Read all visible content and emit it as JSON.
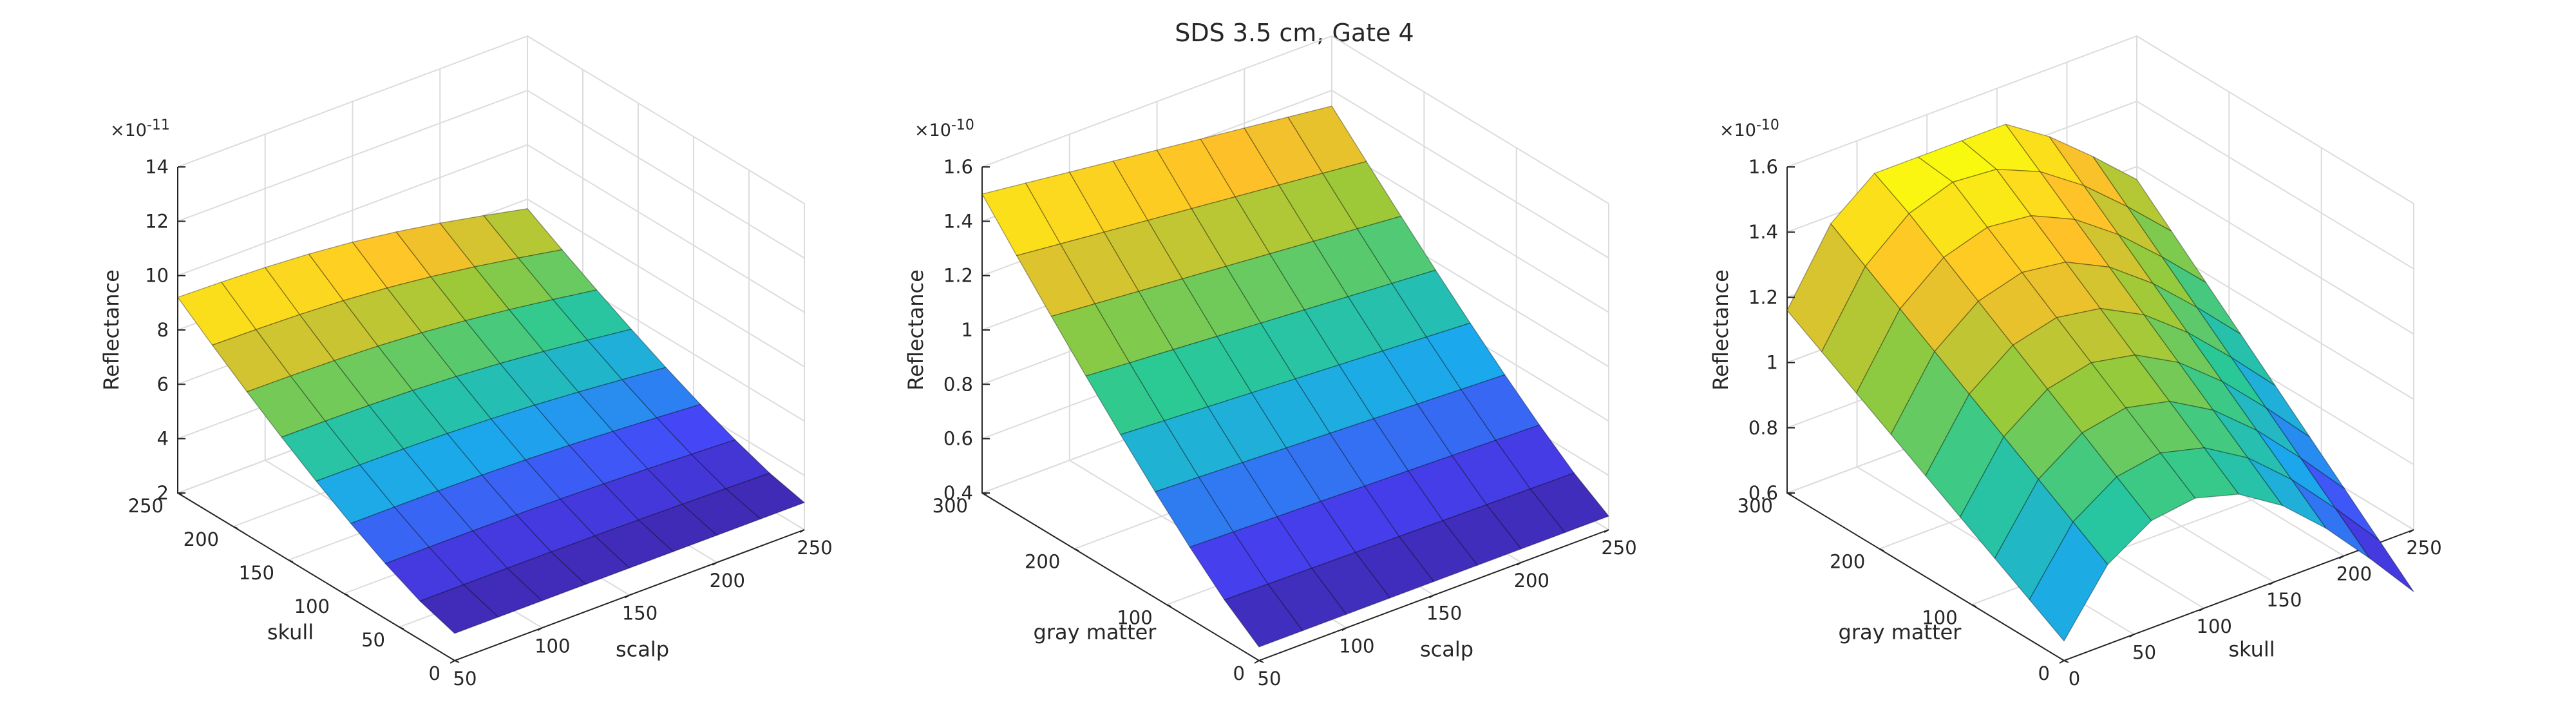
{
  "figure": {
    "title": "SDS 3.5 cm, Gate 4",
    "colormap": [
      "#3e26a8",
      "#4743f8",
      "#1ca8ec",
      "#2ac995",
      "#97ca3a",
      "#fec029",
      "#f9fb0e"
    ]
  },
  "chart_data": [
    {
      "type": "surface",
      "zlabel": "Reflectance",
      "xlabel": "scalp",
      "ylabel": "skull",
      "exponent": "-11",
      "xlim": [
        50,
        250
      ],
      "ylim": [
        0,
        250
      ],
      "zlim": [
        2,
        14
      ],
      "xticks": [
        50,
        100,
        150,
        200,
        250
      ],
      "yticks": [
        0,
        50,
        100,
        150,
        200,
        250
      ],
      "zticks": [
        2,
        4,
        6,
        8,
        10,
        12,
        14
      ],
      "x": [
        50,
        75,
        100,
        125,
        150,
        175,
        200,
        225,
        250
      ],
      "y": [
        0,
        31.25,
        62.5,
        93.75,
        125,
        156.25,
        187.5,
        218.75,
        250
      ],
      "z_model": "skull_dependent"
    },
    {
      "type": "surface",
      "zlabel": "Reflectance",
      "xlabel": "scalp",
      "ylabel": "gray matter",
      "exponent": "-10",
      "xlim": [
        50,
        250
      ],
      "ylim": [
        0,
        300
      ],
      "zlim": [
        0.4,
        1.6
      ],
      "xticks": [
        50,
        100,
        150,
        200,
        250
      ],
      "yticks": [
        0,
        100,
        200,
        300
      ],
      "zticks": [
        0.4,
        0.6,
        0.8,
        1,
        1.2,
        1.4,
        1.6
      ],
      "x": [
        50,
        75,
        100,
        125,
        150,
        175,
        200,
        225,
        250
      ],
      "y": [
        0,
        37.5,
        75,
        112.5,
        150,
        187.5,
        225,
        262.5,
        300
      ],
      "z_model": "gray_dependent"
    },
    {
      "type": "surface",
      "zlabel": "Reflectance",
      "xlabel": "skull",
      "ylabel": "gray matter",
      "exponent": "-10",
      "xlim": [
        0,
        250
      ],
      "ylim": [
        0,
        300
      ],
      "zlim": [
        0.6,
        1.6
      ],
      "xticks": [
        0,
        50,
        100,
        150,
        200,
        250
      ],
      "yticks": [
        0,
        100,
        200,
        300
      ],
      "zticks": [
        0.6,
        0.8,
        1,
        1.2,
        1.4,
        1.6
      ],
      "x": [
        0,
        31.25,
        62.5,
        93.75,
        125,
        156.25,
        187.5,
        218.75,
        250
      ],
      "y": [
        0,
        37.5,
        75,
        112.5,
        150,
        187.5,
        225,
        262.5,
        300
      ],
      "z_model": "dome"
    }
  ]
}
